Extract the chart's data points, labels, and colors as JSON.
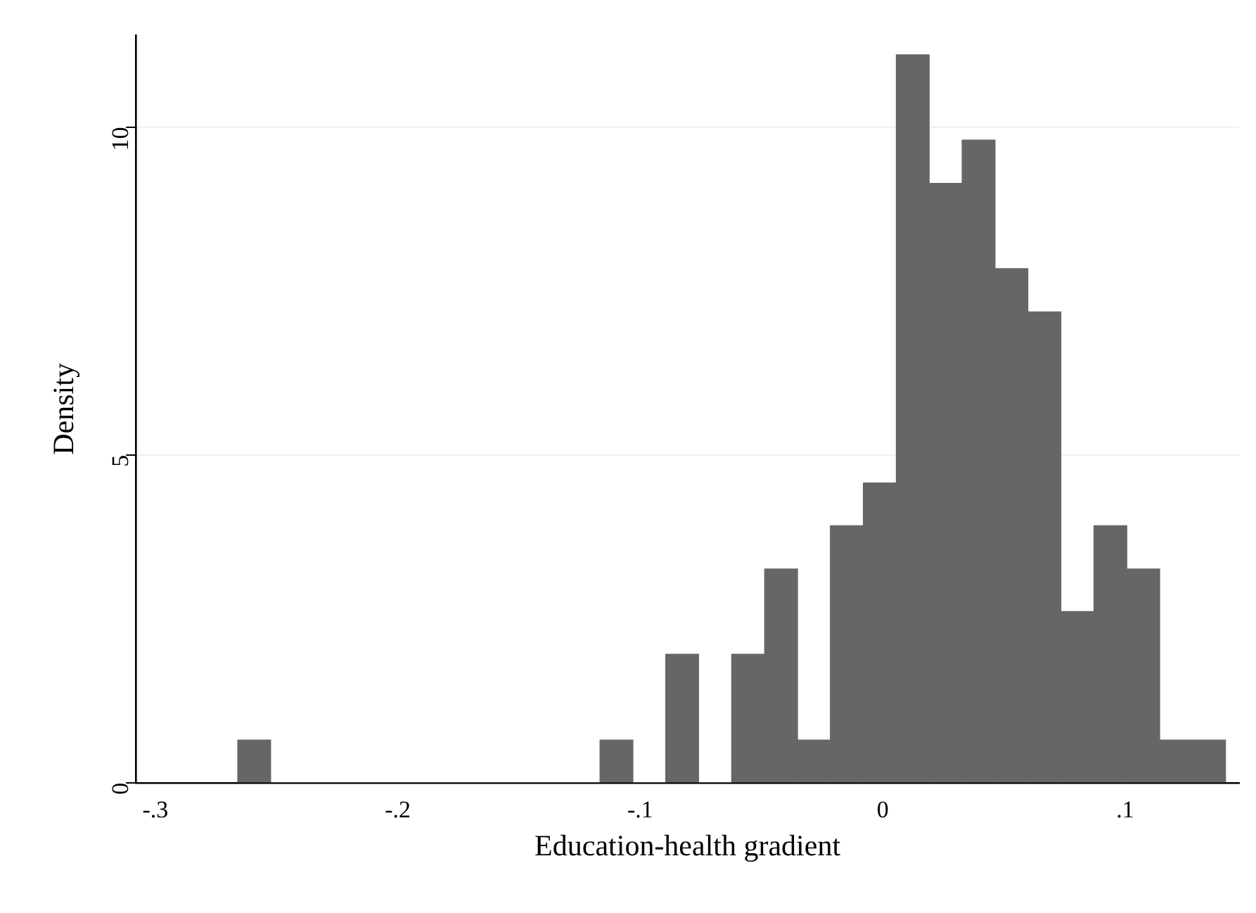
{
  "chart_data": {
    "type": "histogram",
    "xlabel": "Education-health gradient",
    "ylabel": "Density",
    "bins": [
      -0.266,
      -0.2524,
      -0.2388,
      -0.2253,
      -0.2117,
      -0.1981,
      -0.1845,
      -0.1709,
      -0.1574,
      -0.1438,
      -0.1302,
      -0.1166,
      -0.103,
      -0.0895,
      -0.0759,
      -0.0623,
      -0.0487,
      -0.0351,
      -0.0216,
      -0.008,
      0.0056,
      0.0192,
      0.0328,
      0.0463,
      0.0599,
      0.0735,
      0.0871,
      0.1007,
      0.1142,
      0.1278,
      0.1414
    ],
    "values": [
      0.65,
      0,
      0,
      0,
      0,
      0,
      0,
      0,
      0,
      0,
      0,
      0.65,
      0,
      1.96,
      0,
      1.96,
      3.26,
      0.65,
      3.92,
      4.57,
      11.1,
      9.14,
      9.8,
      7.84,
      7.18,
      2.61,
      3.92,
      3.26,
      0.65,
      0.65
    ],
    "color": "#666666",
    "xlim": [
      -0.308,
      0.147
    ],
    "xticks": [
      {
        "value": -0.3,
        "label": "-.3"
      },
      {
        "value": -0.2,
        "label": "-.2"
      },
      {
        "value": -0.1,
        "label": "-.1"
      },
      0,
      {
        "value": 0.1,
        "label": ".1"
      }
    ],
    "ylim": [
      0,
      11.4
    ],
    "yticks": [
      0,
      5,
      10
    ],
    "grid": "y",
    "legend": false
  }
}
